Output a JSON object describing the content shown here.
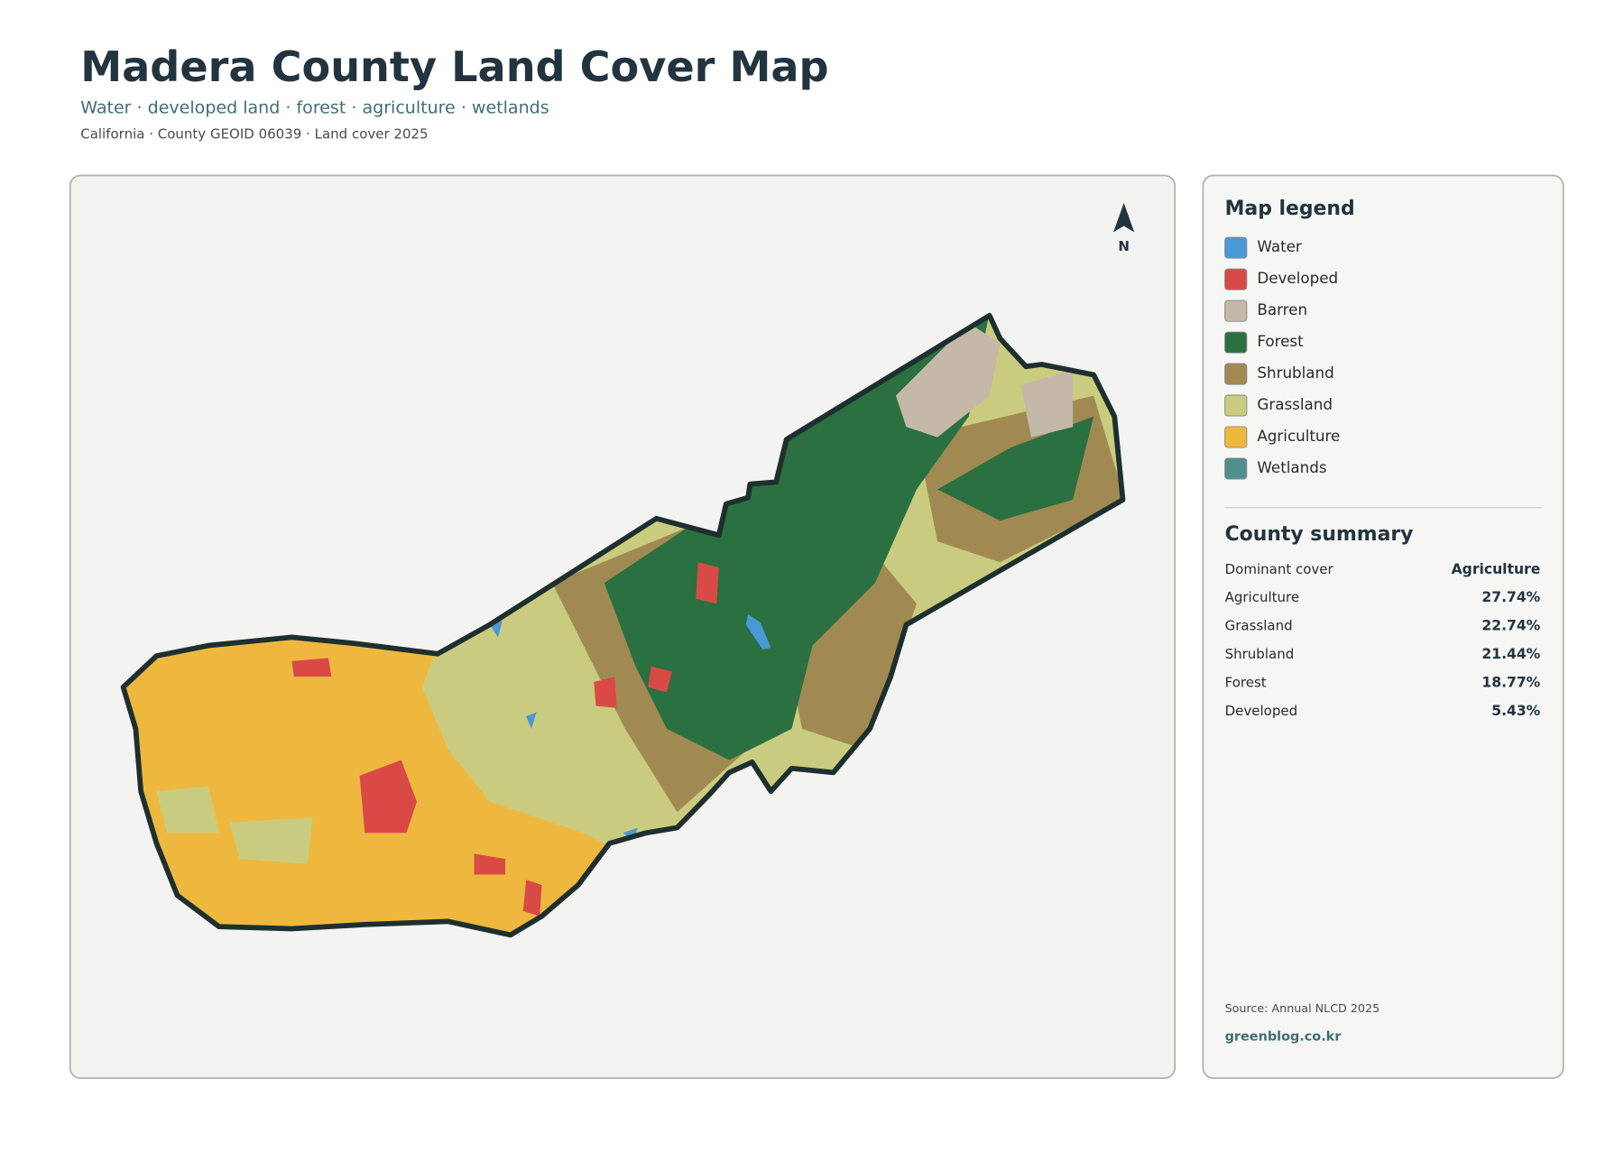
{
  "header": {
    "title": "Madera County Land Cover Map",
    "subtitle": "Water · developed land · forest · agriculture · wetlands",
    "caption": "California · County GEOID 06039 · Land cover 2025"
  },
  "map": {
    "north_label": "N"
  },
  "legend": {
    "title": "Map legend",
    "items": [
      {
        "label": "Water",
        "color": "#4a98d6"
      },
      {
        "label": "Developed",
        "color": "#d94a47"
      },
      {
        "label": "Barren",
        "color": "#c4b8a8"
      },
      {
        "label": "Forest",
        "color": "#2a7040"
      },
      {
        "label": "Shrubland",
        "color": "#a08a52"
      },
      {
        "label": "Grassland",
        "color": "#c9cc7e"
      },
      {
        "label": "Agriculture",
        "color": "#eeb83e"
      },
      {
        "label": "Wetlands",
        "color": "#4e918c"
      }
    ]
  },
  "summary": {
    "title": "County summary",
    "rows": [
      [
        "Dominant cover",
        "Agriculture"
      ],
      [
        "Agriculture",
        "27.74%"
      ],
      [
        "Grassland",
        "22.74%"
      ],
      [
        "Shrubland",
        "21.44%"
      ],
      [
        "Forest",
        "18.77%"
      ],
      [
        "Developed",
        "5.43%"
      ]
    ]
  },
  "footer": {
    "source": "Source: Annual NLCD 2025",
    "site": "greenblog.co.kr"
  }
}
